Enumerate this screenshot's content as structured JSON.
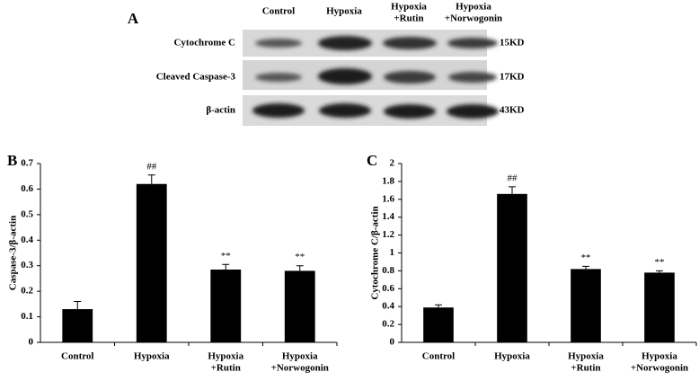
{
  "panel_a": {
    "label": "A",
    "columns": [
      [
        "Control"
      ],
      [
        "Hypoxia"
      ],
      [
        "Hypoxia",
        "+Rutin"
      ],
      [
        "Hypoxia",
        "+Norwogonin"
      ]
    ],
    "rows": [
      {
        "protein": "Cytochrome C",
        "size": "15KD"
      },
      {
        "protein": "Cleaved Caspase-3",
        "size": "17KD"
      },
      {
        "protein": "β-actin",
        "size": "43KD"
      }
    ]
  },
  "chart_data": [
    {
      "type": "bar",
      "panel_label": "B",
      "y_label": "Caspase-3/β-actin",
      "categories": [
        [
          "Control"
        ],
        [
          "Hypoxia"
        ],
        [
          "Hypoxia",
          "+Rutin"
        ],
        [
          "Hypoxia",
          "+Norwogonin"
        ]
      ],
      "values": [
        0.13,
        0.62,
        0.285,
        0.28
      ],
      "errors": [
        0.03,
        0.035,
        0.02,
        0.02
      ],
      "annotations": [
        null,
        "##",
        "**",
        "**"
      ],
      "color": "#000000",
      "ylim": [
        0,
        0.7
      ],
      "yticks": [
        0,
        0.1,
        0.2,
        0.3,
        0.4,
        0.5,
        0.6,
        0.7
      ]
    },
    {
      "type": "bar",
      "panel_label": "C",
      "y_label": "Cytochrome C/β-actin",
      "categories": [
        [
          "Control"
        ],
        [
          "Hypoxia"
        ],
        [
          "Hypoxia",
          "+Rutin"
        ],
        [
          "Hypoxia",
          "+Norwogonin"
        ]
      ],
      "values": [
        0.39,
        1.66,
        0.82,
        0.78
      ],
      "errors": [
        0.03,
        0.08,
        0.03,
        0.02
      ],
      "annotations": [
        null,
        "##",
        "**",
        "**"
      ],
      "color": "#000000",
      "ylim": [
        0,
        2
      ],
      "yticks": [
        0,
        0.2,
        0.4,
        0.6,
        0.8,
        1,
        1.2,
        1.4,
        1.6,
        1.8,
        2
      ]
    }
  ]
}
